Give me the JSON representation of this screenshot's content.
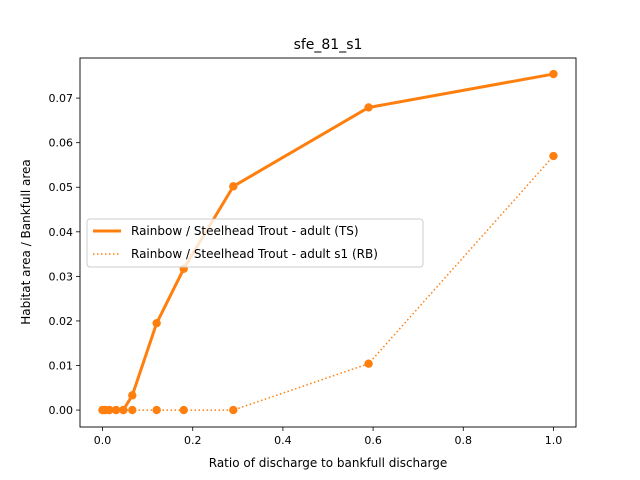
{
  "chart_data": {
    "type": "line",
    "title": "sfe_81_s1",
    "xlabel": "Ratio of discharge to bankfull discharge",
    "ylabel": "Habitat area / Bankfull area",
    "xlim": [
      -0.05,
      1.05
    ],
    "ylim": [
      -0.0038,
      0.079
    ],
    "xticks": [
      0.0,
      0.2,
      0.4,
      0.6,
      0.8,
      1.0
    ],
    "xtick_labels": [
      "0.0",
      "0.2",
      "0.4",
      "0.6",
      "0.8",
      "1.0"
    ],
    "yticks": [
      0.0,
      0.01,
      0.02,
      0.03,
      0.04,
      0.05,
      0.06,
      0.07
    ],
    "ytick_labels": [
      "0.00",
      "0.01",
      "0.02",
      "0.03",
      "0.04",
      "0.05",
      "0.06",
      "0.07"
    ],
    "grid": false,
    "legend_position": "center-left",
    "series": [
      {
        "name": "Rainbow / Steelhead Trout - adult (TS)",
        "color": "#ff7f0e",
        "style": "solid",
        "x": [
          0.0,
          0.006,
          0.015,
          0.03,
          0.046,
          0.066,
          0.12,
          0.18,
          0.29,
          0.59,
          1.0
        ],
        "y": [
          0.0,
          0.0,
          0.0,
          0.0,
          0.0,
          0.0033,
          0.0195,
          0.0317,
          0.0502,
          0.0679,
          0.0754
        ]
      },
      {
        "name": "Rainbow / Steelhead Trout - adult s1 (RB)",
        "color": "#ff7f0e",
        "style": "dotted",
        "x": [
          0.0,
          0.006,
          0.015,
          0.03,
          0.046,
          0.066,
          0.12,
          0.18,
          0.29,
          0.59,
          1.0
        ],
        "y": [
          0.0,
          0.0,
          0.0,
          0.0,
          0.0,
          0.0,
          0.0,
          0.0,
          0.0,
          0.0104,
          0.057
        ]
      }
    ]
  }
}
